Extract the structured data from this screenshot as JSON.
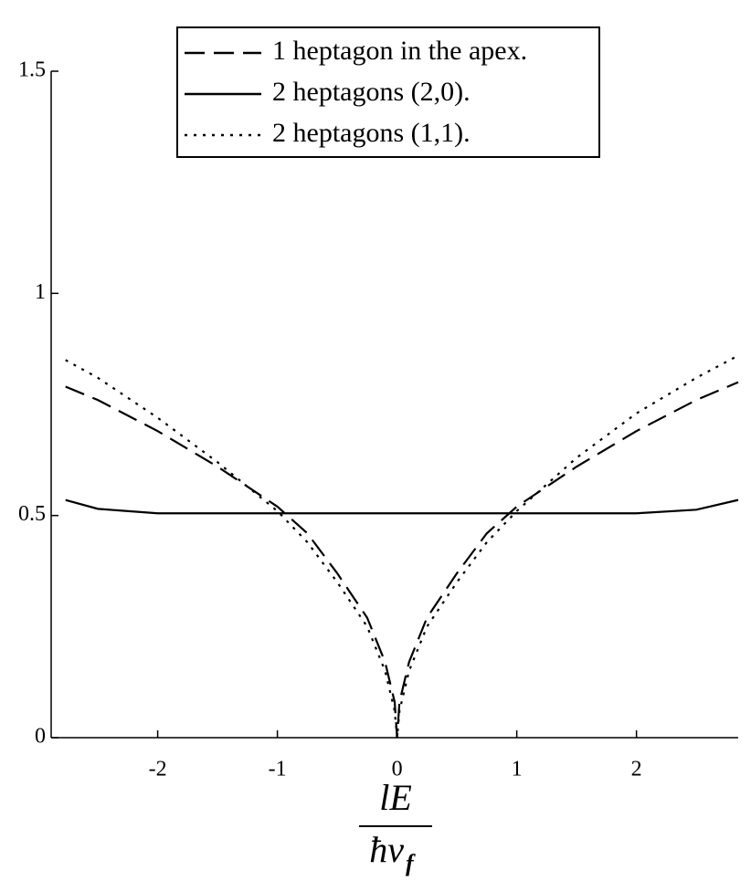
{
  "chart_data": {
    "type": "line",
    "x_label": {
      "numerator": "lE",
      "denominator": "ħv",
      "subscript": "f"
    },
    "x": [
      -2.77,
      -2.5,
      -2,
      -1.5,
      -1,
      -0.75,
      -0.5,
      -0.25,
      -0.1,
      -0.02,
      0,
      0.02,
      0.1,
      0.25,
      0.5,
      0.75,
      1,
      1.5,
      2,
      2.5,
      2.85
    ],
    "series": [
      {
        "name": "1 heptagon in the apex.",
        "color": "#000000",
        "dash": "dashed",
        "values": [
          0.79,
          0.76,
          0.69,
          0.61,
          0.52,
          0.46,
          0.37,
          0.27,
          0.17,
          0.08,
          0,
          0.08,
          0.17,
          0.27,
          0.37,
          0.46,
          0.52,
          0.61,
          0.69,
          0.76,
          0.8
        ]
      },
      {
        "name": "2 heptagons (2,0).",
        "color": "#000000",
        "dash": "solid",
        "values": [
          0.535,
          0.515,
          0.505,
          0.505,
          0.505,
          0.505,
          0.505,
          0.505,
          0.505,
          0.505,
          0.505,
          0.505,
          0.505,
          0.505,
          0.505,
          0.505,
          0.505,
          0.505,
          0.505,
          0.513,
          0.535
        ]
      },
      {
        "name": "2 heptagons (1,1).",
        "color": "#000000",
        "dash": "dotted",
        "values": [
          0.85,
          0.81,
          0.72,
          0.62,
          0.51,
          0.44,
          0.35,
          0.25,
          0.15,
          0.06,
          0,
          0.06,
          0.15,
          0.25,
          0.35,
          0.44,
          0.51,
          0.63,
          0.73,
          0.81,
          0.86
        ]
      }
    ],
    "xlim": [
      -2.89,
      2.85
    ],
    "ylim": [
      0,
      1.5
    ],
    "xticks": [
      -2,
      -1,
      0,
      1,
      2
    ],
    "yticks": [
      0,
      0.5,
      1,
      1.5
    ],
    "legend": "top",
    "grid": false
  }
}
